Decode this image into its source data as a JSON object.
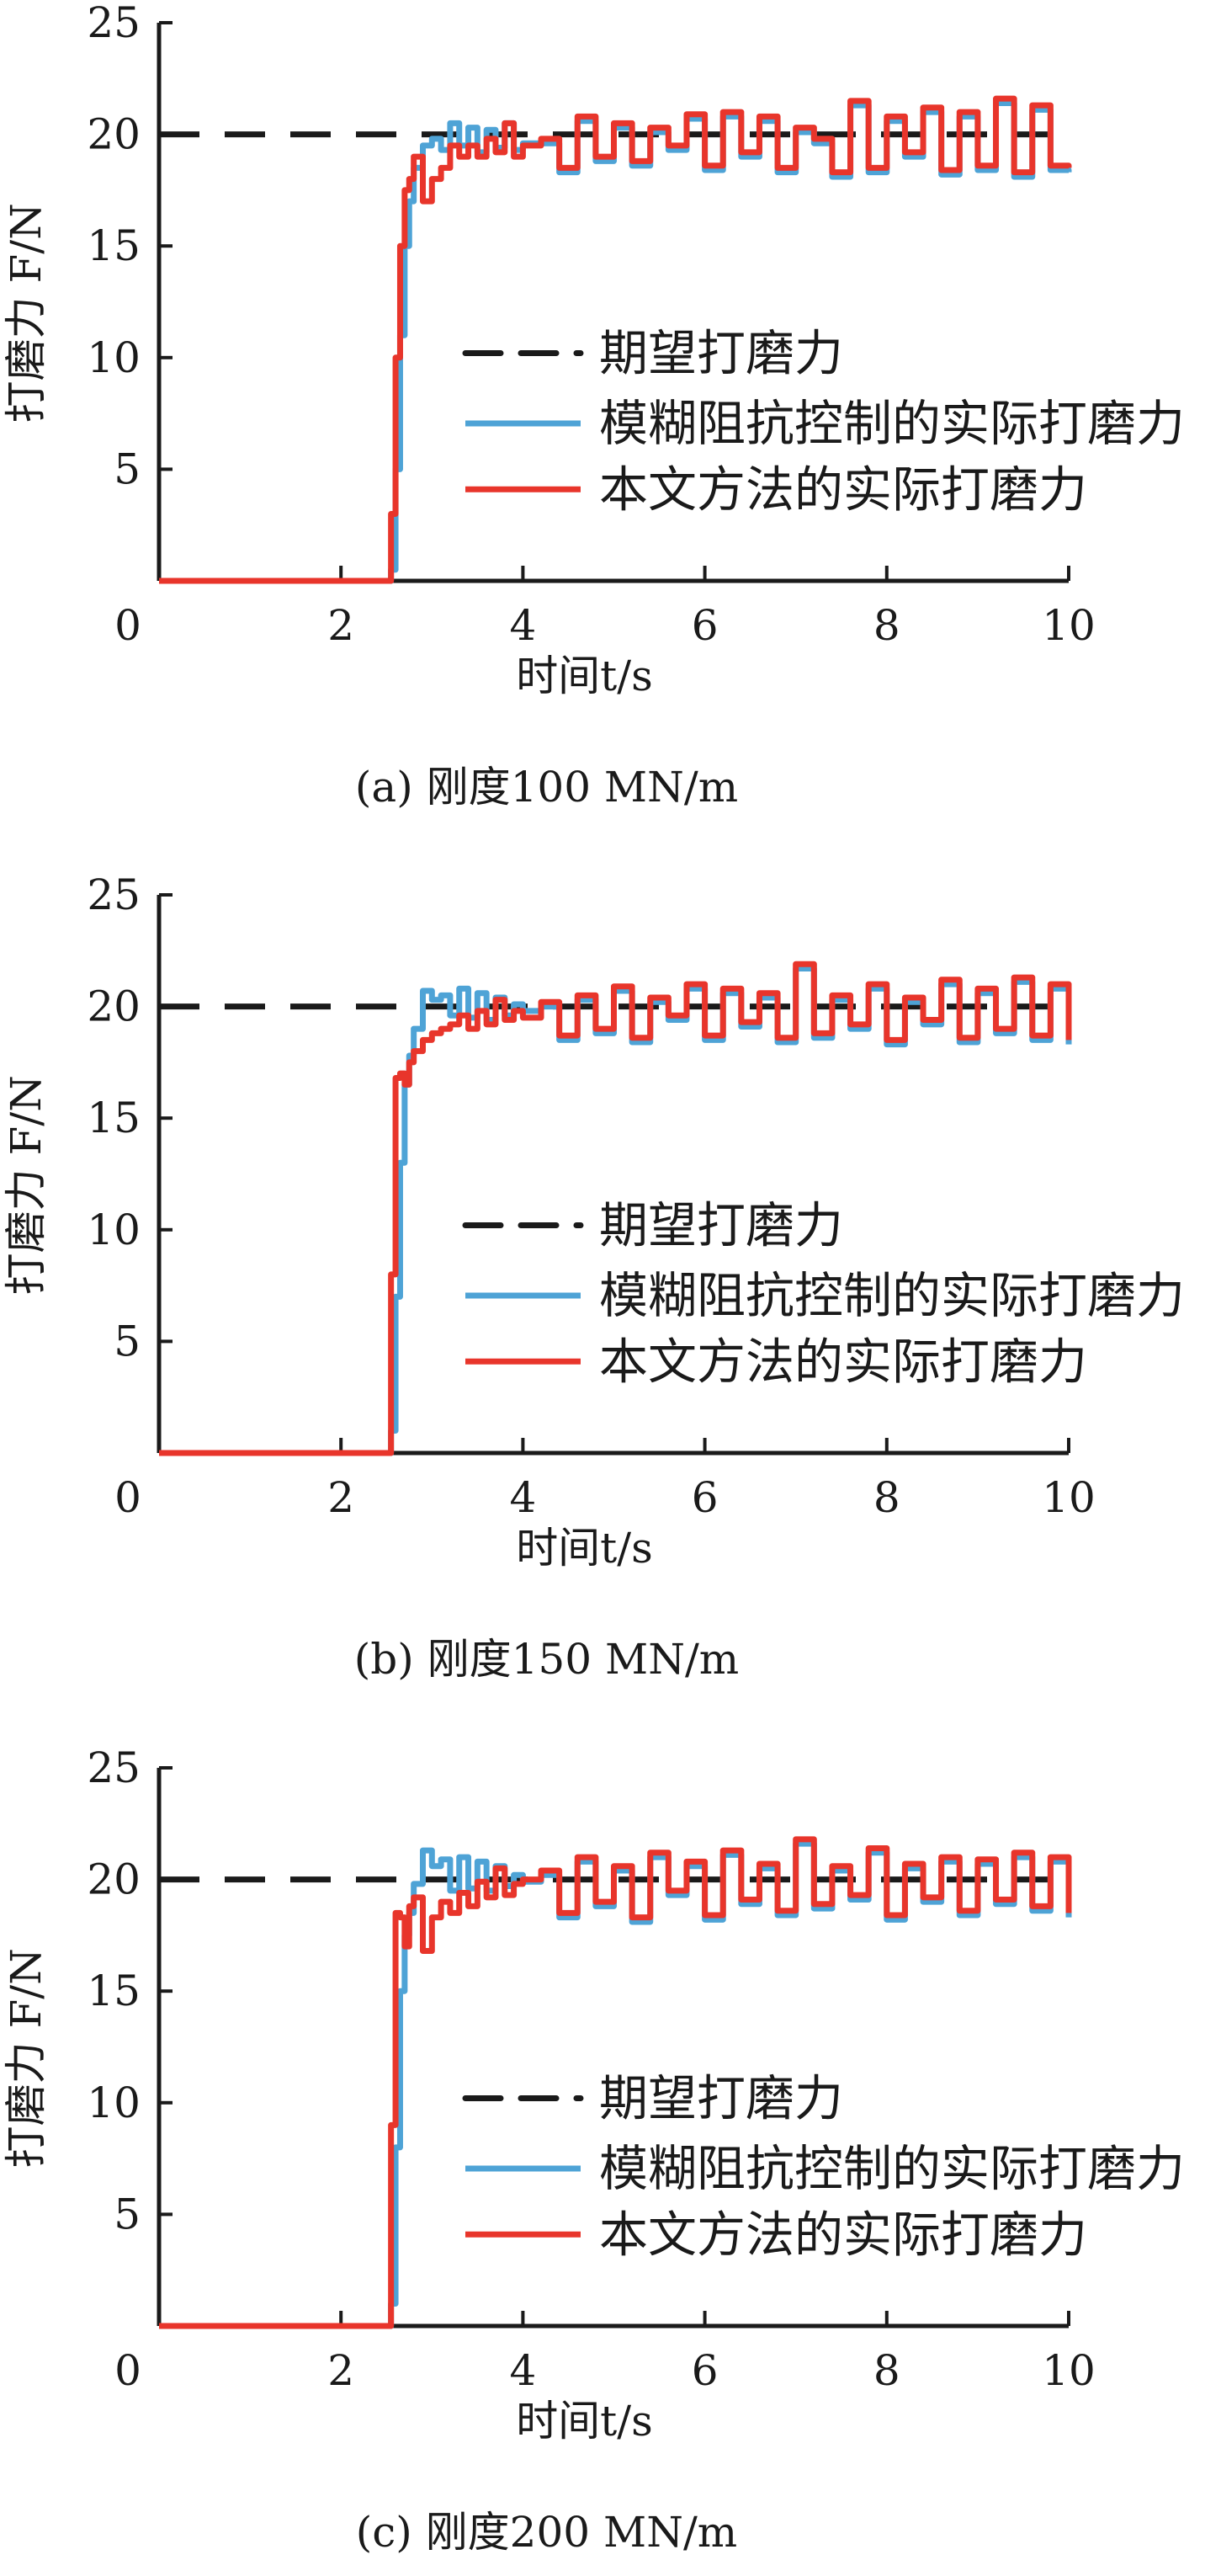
{
  "chart_data": [
    {
      "type": "line",
      "caption": "(a) 刚度100 MN/m",
      "xlabel": "时间t/s",
      "ylabel": "打磨力 F/N",
      "xlim": [
        0,
        10
      ],
      "ylim": [
        0,
        25
      ],
      "xticks": [
        "0",
        "2",
        "4",
        "6",
        "8",
        "10"
      ],
      "yticks": [
        "5",
        "10",
        "15",
        "20",
        "25"
      ],
      "legend_position": "center-right",
      "x": [
        0,
        2.5,
        2.55,
        2.6,
        2.65,
        2.7,
        2.75,
        2.8,
        2.9,
        3.0,
        3.1,
        3.2,
        3.3,
        3.4,
        3.5,
        3.6,
        3.7,
        3.8,
        3.9,
        4.0,
        4.2,
        4.4,
        4.6,
        4.8,
        5.0,
        5.2,
        5.4,
        5.6,
        5.8,
        6.0,
        6.2,
        6.4,
        6.6,
        6.8,
        7.0,
        7.2,
        7.4,
        7.6,
        7.8,
        8.0,
        8.2,
        8.4,
        8.6,
        8.8,
        9.0,
        9.2,
        9.4,
        9.6,
        9.8,
        10.0
      ],
      "series": [
        {
          "name": "期望打磨力",
          "color": "#1a1a1a",
          "style": "dashed",
          "constant": 20
        },
        {
          "name": "模糊阻抗控制的实际打磨力",
          "color": "#4ea3d6",
          "values": [
            0,
            0,
            0.5,
            5,
            11,
            15,
            17,
            18.5,
            19.5,
            19.8,
            19.3,
            20.5,
            19.5,
            20.3,
            19.2,
            20.2,
            19.4,
            20.5,
            19.3,
            19.6,
            19.6,
            18.3,
            20.6,
            18.8,
            20.3,
            18.6,
            20.1,
            19.3,
            20.7,
            18.4,
            20.8,
            19,
            20.6,
            18.3,
            20.1,
            19.6,
            18.1,
            21.3,
            18.3,
            20.6,
            19,
            21,
            18.2,
            20.8,
            18.4,
            21.4,
            18.1,
            21.1,
            18.4,
            18.3
          ]
        },
        {
          "name": "本文方法的实际打磨力",
          "color": "#e8352b",
          "values": [
            0,
            0,
            3,
            10,
            15,
            17.5,
            18,
            19,
            17,
            18,
            18.5,
            19.5,
            19,
            19.5,
            19,
            19.8,
            19.2,
            20.5,
            19,
            19.5,
            19.8,
            18.5,
            20.8,
            19,
            20.5,
            18.8,
            20.3,
            19.5,
            20.9,
            18.6,
            21,
            19.2,
            20.8,
            18.5,
            20.3,
            19.8,
            18.3,
            21.5,
            18.5,
            20.8,
            19.2,
            21.2,
            18.4,
            21,
            18.6,
            21.6,
            18.3,
            21.3,
            18.6,
            18.5
          ]
        }
      ]
    },
    {
      "type": "line",
      "caption": "(b) 刚度150 MN/m",
      "xlabel": "时间t/s",
      "ylabel": "打磨力 F/N",
      "xlim": [
        0,
        10
      ],
      "ylim": [
        0,
        25
      ],
      "xticks": [
        "0",
        "2",
        "4",
        "6",
        "8",
        "10"
      ],
      "yticks": [
        "5",
        "10",
        "15",
        "20",
        "25"
      ],
      "legend_position": "center-right",
      "x": [
        0,
        2.5,
        2.55,
        2.6,
        2.65,
        2.7,
        2.75,
        2.8,
        2.9,
        3.0,
        3.1,
        3.2,
        3.3,
        3.4,
        3.5,
        3.6,
        3.7,
        3.8,
        3.9,
        4.0,
        4.2,
        4.4,
        4.6,
        4.8,
        5.0,
        5.2,
        5.4,
        5.6,
        5.8,
        6.0,
        6.2,
        6.4,
        6.6,
        6.8,
        7.0,
        7.2,
        7.4,
        7.6,
        7.8,
        8.0,
        8.2,
        8.4,
        8.6,
        8.8,
        9.0,
        9.2,
        9.4,
        9.6,
        9.8,
        10.0
      ],
      "series": [
        {
          "name": "期望打磨力",
          "color": "#1a1a1a",
          "style": "dashed",
          "constant": 20
        },
        {
          "name": "模糊阻抗控制的实际打磨力",
          "color": "#4ea3d6",
          "values": [
            0,
            0,
            1,
            7,
            13,
            16.5,
            17.8,
            19,
            20.7,
            20.3,
            20.5,
            19.6,
            20.8,
            19.5,
            20.6,
            19.4,
            20.4,
            19.6,
            20.1,
            19.8,
            20,
            18.5,
            20.3,
            18.8,
            20.7,
            18.4,
            20.2,
            19.4,
            20.8,
            18.5,
            20.6,
            19.1,
            20.4,
            18.4,
            21.7,
            18.6,
            20.3,
            19,
            20.8,
            18.3,
            20.2,
            19.2,
            21,
            18.4,
            20.6,
            18.8,
            21.1,
            18.5,
            20.8,
            18.3
          ]
        },
        {
          "name": "本文方法的实际打磨力",
          "color": "#e8352b",
          "values": [
            0,
            0,
            8,
            16.8,
            17,
            16.5,
            17.5,
            18,
            18.5,
            18.8,
            19,
            19.2,
            19.6,
            19,
            19.8,
            19.2,
            20.3,
            19.4,
            19.8,
            19.5,
            20.2,
            18.7,
            20.5,
            19,
            20.9,
            18.6,
            20.4,
            19.6,
            21,
            18.7,
            20.8,
            19.3,
            20.6,
            18.6,
            21.9,
            18.8,
            20.5,
            19.2,
            21,
            18.5,
            20.4,
            19.4,
            21.2,
            18.6,
            20.8,
            19,
            21.3,
            18.7,
            21,
            18.5
          ]
        }
      ]
    },
    {
      "type": "line",
      "caption": "(c) 刚度200 MN/m",
      "xlabel": "时间t/s",
      "ylabel": "打磨力 F/N",
      "xlim": [
        0,
        10
      ],
      "ylim": [
        0,
        25
      ],
      "xticks": [
        "0",
        "2",
        "4",
        "6",
        "8",
        "10"
      ],
      "yticks": [
        "5",
        "10",
        "15",
        "20",
        "25"
      ],
      "legend_position": "center-right",
      "x": [
        0,
        2.5,
        2.55,
        2.6,
        2.65,
        2.7,
        2.75,
        2.8,
        2.9,
        3.0,
        3.1,
        3.2,
        3.3,
        3.4,
        3.5,
        3.6,
        3.7,
        3.8,
        3.9,
        4.0,
        4.2,
        4.4,
        4.6,
        4.8,
        5.0,
        5.2,
        5.4,
        5.6,
        5.8,
        6.0,
        6.2,
        6.4,
        6.6,
        6.8,
        7.0,
        7.2,
        7.4,
        7.6,
        7.8,
        8.0,
        8.2,
        8.4,
        8.6,
        8.8,
        9.0,
        9.2,
        9.4,
        9.6,
        9.8,
        10.0
      ],
      "series": [
        {
          "name": "期望打磨力",
          "color": "#1a1a1a",
          "style": "dashed",
          "constant": 20
        },
        {
          "name": "模糊阻抗控制的实际打磨力",
          "color": "#4ea3d6",
          "values": [
            0,
            0,
            1,
            8,
            15,
            17.5,
            18.5,
            19.8,
            21.3,
            20.6,
            20.9,
            19.5,
            21,
            19.6,
            20.8,
            19.5,
            20.6,
            19.7,
            20.2,
            19.9,
            20.2,
            18.3,
            20.8,
            18.8,
            20.4,
            18.1,
            21,
            19.3,
            20.6,
            18.2,
            21.1,
            18.9,
            20.5,
            18.4,
            21.6,
            18.7,
            20.4,
            19.1,
            21.2,
            18.2,
            20.5,
            19,
            20.8,
            18.4,
            20.7,
            18.9,
            21,
            18.6,
            20.8,
            18.3
          ]
        },
        {
          "name": "本文方法的实际打磨力",
          "color": "#e8352b",
          "values": [
            0,
            0,
            9,
            18.5,
            18.3,
            17,
            18.8,
            19.2,
            16.8,
            18.3,
            19,
            18.5,
            19.4,
            18.8,
            19.9,
            19.2,
            20.5,
            19.3,
            19.8,
            20,
            20.4,
            18.5,
            21,
            19,
            20.6,
            18.3,
            21.2,
            19.5,
            20.8,
            18.4,
            21.3,
            19.1,
            20.7,
            18.6,
            21.8,
            18.9,
            20.6,
            19.3,
            21.4,
            18.4,
            20.7,
            19.2,
            21,
            18.6,
            20.9,
            19.1,
            21.2,
            18.8,
            21,
            18.5
          ]
        }
      ]
    }
  ]
}
